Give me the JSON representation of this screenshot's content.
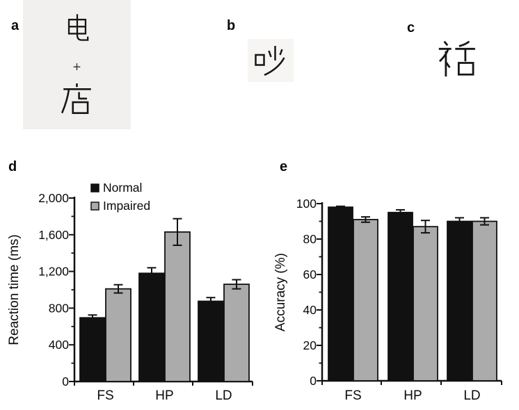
{
  "panels": {
    "a": {
      "label": "a",
      "stimulus_top": "电",
      "fixation": "+",
      "stimulus_bottom": "店"
    },
    "b": {
      "label": "b",
      "stimulus": "吵"
    },
    "c": {
      "label": "c",
      "stimulus_left_component": "礻",
      "stimulus_right_component": "舌"
    },
    "d": {
      "label": "d"
    },
    "e": {
      "label": "e"
    }
  },
  "chart_data": [
    {
      "type": "bar",
      "panel": "d",
      "ylabel": "Reaction time (ms)",
      "categories": [
        "FS",
        "HP",
        "LD"
      ],
      "series": [
        {
          "name": "Normal",
          "color": "#111111",
          "values": [
            695,
            1180,
            875
          ],
          "errors": [
            30,
            60,
            40
          ]
        },
        {
          "name": "Impaired",
          "color": "#ababab",
          "values": [
            1010,
            1630,
            1060
          ],
          "errors": [
            45,
            145,
            50
          ]
        }
      ],
      "ylim": [
        0,
        2000
      ],
      "yticks": [
        0,
        400,
        800,
        1200,
        1600,
        2000
      ],
      "ytick_labels": [
        "0",
        "400",
        "800",
        "1,200",
        "1,600",
        "2,000"
      ],
      "minor_tick_step": 200,
      "legend_position": "top-left",
      "grid": false
    },
    {
      "type": "bar",
      "panel": "e",
      "ylabel": "Accuracy (%)",
      "categories": [
        "FS",
        "HP",
        "LD"
      ],
      "series": [
        {
          "name": "Normal",
          "color": "#111111",
          "values": [
            98,
            95,
            90
          ],
          "errors": [
            0.5,
            1.5,
            2
          ]
        },
        {
          "name": "Impaired",
          "color": "#ababab",
          "values": [
            91,
            87,
            90
          ],
          "errors": [
            1.5,
            3.5,
            2
          ]
        }
      ],
      "ylim": [
        0,
        100
      ],
      "yticks": [
        0,
        20,
        40,
        60,
        80,
        100
      ],
      "ytick_labels": [
        "0",
        "20",
        "40",
        "60",
        "80",
        "100"
      ],
      "minor_tick_step": 10,
      "legend_position": "none",
      "grid": false
    }
  ]
}
